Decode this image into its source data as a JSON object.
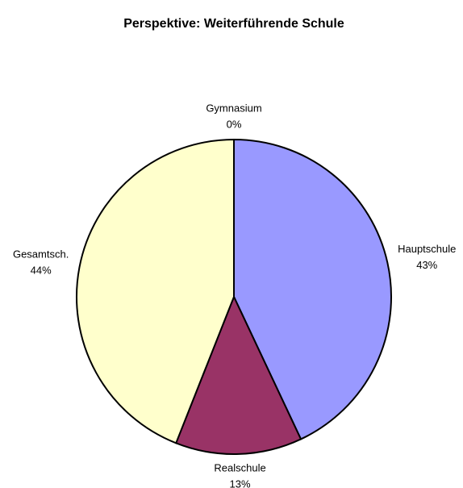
{
  "chart_data": {
    "type": "pie",
    "title": "Perspektive: Weiterführende Schule",
    "categories": [
      "Hauptschule",
      "Realschule",
      "Gesamtsch.",
      "Gymnasium"
    ],
    "values": [
      43,
      13,
      44,
      0
    ],
    "value_labels": [
      "43%",
      "13%",
      "44%",
      "0%"
    ],
    "colors": [
      "#9999ff",
      "#993366",
      "#ffffcc",
      "#ccffff"
    ]
  }
}
